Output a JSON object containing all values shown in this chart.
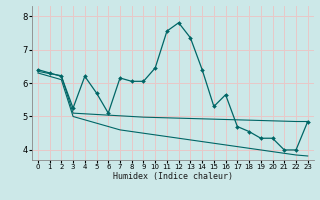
{
  "xlabel": "Humidex (Indice chaleur)",
  "bg_color": "#cce8e8",
  "grid_color": "#e8c8c8",
  "line_color": "#006666",
  "xlim": [
    -0.5,
    23.5
  ],
  "ylim": [
    3.7,
    8.3
  ],
  "yticks": [
    4,
    5,
    6,
    7,
    8
  ],
  "xticks": [
    0,
    1,
    2,
    3,
    4,
    5,
    6,
    7,
    8,
    9,
    10,
    11,
    12,
    13,
    14,
    15,
    16,
    17,
    18,
    19,
    20,
    21,
    22,
    23
  ],
  "main_x": [
    0,
    1,
    2,
    3,
    4,
    5,
    6,
    7,
    8,
    9,
    10,
    11,
    12,
    13,
    14,
    15,
    16,
    17,
    18,
    19,
    20,
    21,
    22,
    23
  ],
  "main_y": [
    6.4,
    6.3,
    6.2,
    5.25,
    6.2,
    5.7,
    5.1,
    6.15,
    6.05,
    6.05,
    6.45,
    7.55,
    7.8,
    7.35,
    6.4,
    5.3,
    5.65,
    4.7,
    4.55,
    4.35,
    4.35,
    4.0,
    4.0,
    4.85
  ],
  "line2_x": [
    0,
    1,
    2,
    3,
    4,
    5,
    6,
    7,
    8,
    9,
    10,
    11,
    12,
    13,
    14,
    15,
    16,
    17,
    18,
    19,
    20,
    21,
    22,
    23
  ],
  "line2_y": [
    6.35,
    6.28,
    6.22,
    5.1,
    5.08,
    5.06,
    5.04,
    5.02,
    5.0,
    4.98,
    4.97,
    4.96,
    4.95,
    4.94,
    4.93,
    4.92,
    4.91,
    4.9,
    4.89,
    4.88,
    4.87,
    4.86,
    4.85,
    4.85
  ],
  "line3_x": [
    0,
    1,
    2,
    3,
    4,
    5,
    6,
    7,
    8,
    9,
    10,
    11,
    12,
    13,
    14,
    15,
    16,
    17,
    18,
    19,
    20,
    21,
    22,
    23
  ],
  "line3_y": [
    6.3,
    6.2,
    6.1,
    5.0,
    4.9,
    4.8,
    4.7,
    4.6,
    4.55,
    4.5,
    4.45,
    4.4,
    4.35,
    4.3,
    4.25,
    4.2,
    4.15,
    4.1,
    4.05,
    4.0,
    3.95,
    3.9,
    3.85,
    3.82
  ]
}
